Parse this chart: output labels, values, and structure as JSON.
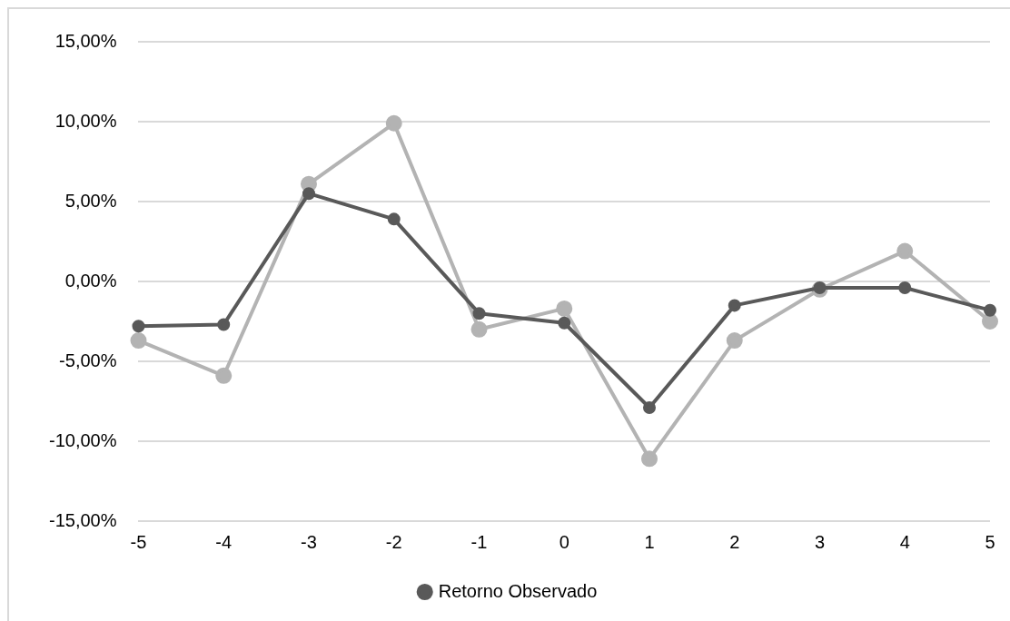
{
  "chart_data": {
    "type": "line",
    "categories": [
      "-5",
      "-4",
      "-3",
      "-2",
      "-1",
      "0",
      "1",
      "2",
      "3",
      "4",
      "5"
    ],
    "series": [
      {
        "name": "Retorno Observado",
        "color": "#595959",
        "values": [
          -2.8,
          -2.7,
          5.5,
          3.9,
          -2.0,
          -2.6,
          -7.9,
          -1.5,
          -0.4,
          -0.4,
          -1.8
        ]
      },
      {
        "color": "#b3b3b3",
        "values": [
          -3.7,
          -5.9,
          6.1,
          9.9,
          -3.0,
          -1.7,
          -11.1,
          -3.7,
          -0.5,
          1.9,
          -2.5
        ]
      }
    ],
    "ylim": [
      -15,
      15
    ],
    "yticks": [
      {
        "value": -15,
        "label": "-15,00%"
      },
      {
        "value": -10,
        "label": "-10,00%"
      },
      {
        "value": -5,
        "label": "-5,00%"
      },
      {
        "value": 0,
        "label": "0,00%"
      },
      {
        "value": 5,
        "label": "5,00%"
      },
      {
        "value": 10,
        "label": "10,00%"
      },
      {
        "value": 15,
        "label": "15,00%"
      }
    ],
    "grid": "y",
    "legend": "bottom",
    "marker": "circle",
    "line_style": "solid"
  }
}
